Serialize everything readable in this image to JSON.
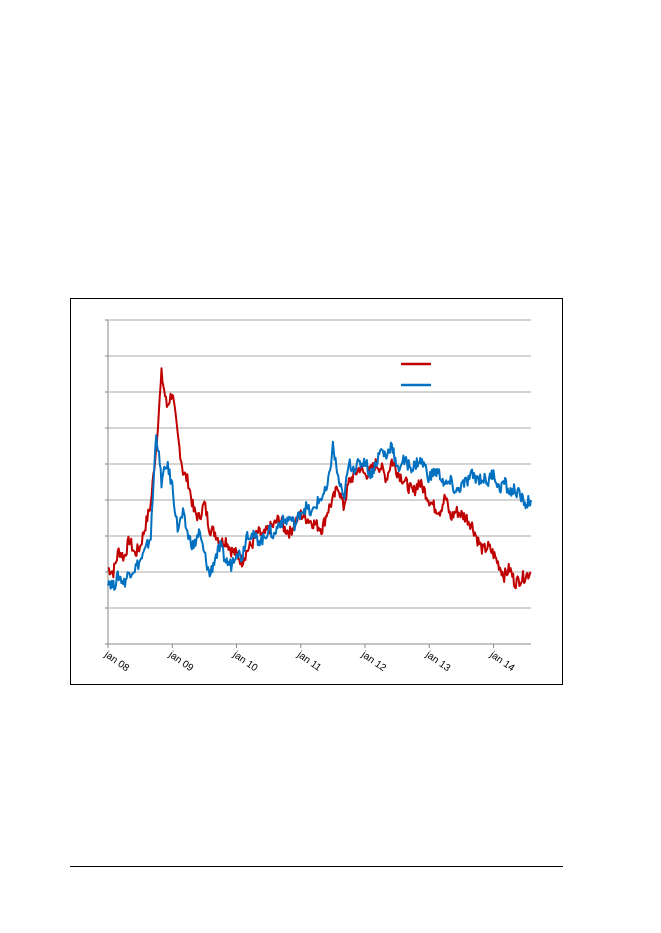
{
  "chart_data": {
    "type": "line",
    "title": "",
    "xlabel": "",
    "ylabel": "",
    "x_tick_labels": [
      "jan 08",
      "jan 09",
      "jan 10",
      "jan 11",
      "jan 12",
      "jan 13",
      "jan 14"
    ],
    "x_range": [
      "2008-01",
      "2014-08"
    ],
    "y_gridlines": 9,
    "grid": true,
    "legend_position": "top-right",
    "y_tick_labels_visible": false,
    "series": [
      {
        "color": "#C00000",
        "x": [
          "2008-01",
          "2008-02",
          "2008-03",
          "2008-04",
          "2008-05",
          "2008-06",
          "2008-07",
          "2008-08",
          "2008-09",
          "2008-10",
          "2008-11",
          "2008-12",
          "2009-01",
          "2009-02",
          "2009-03",
          "2009-04",
          "2009-05",
          "2009-06",
          "2009-07",
          "2009-08",
          "2009-09",
          "2009-10",
          "2009-11",
          "2009-12",
          "2010-01",
          "2010-02",
          "2010-03",
          "2010-04",
          "2010-05",
          "2010-06",
          "2010-07",
          "2010-08",
          "2010-09",
          "2010-10",
          "2010-11",
          "2010-12",
          "2011-01",
          "2011-02",
          "2011-03",
          "2011-04",
          "2011-05",
          "2011-06",
          "2011-07",
          "2011-08",
          "2011-09",
          "2011-10",
          "2011-11",
          "2011-12",
          "2012-01",
          "2012-02",
          "2012-03",
          "2012-04",
          "2012-05",
          "2012-06",
          "2012-07",
          "2012-08",
          "2012-09",
          "2012-10",
          "2012-11",
          "2012-12",
          "2013-01",
          "2013-02",
          "2013-03",
          "2013-04",
          "2013-05",
          "2013-06",
          "2013-07",
          "2013-08",
          "2013-09",
          "2013-10",
          "2013-11",
          "2013-12",
          "2014-01",
          "2014-02",
          "2014-03",
          "2014-04",
          "2014-05",
          "2014-06",
          "2014-07",
          "2014-08"
        ],
        "values": [
          2.1,
          2.0,
          2.6,
          2.4,
          2.9,
          2.5,
          2.7,
          3.3,
          3.9,
          5.5,
          7.5,
          6.6,
          7.0,
          5.8,
          4.8,
          4.5,
          3.7,
          3.5,
          3.9,
          3.2,
          3.1,
          2.8,
          2.9,
          2.6,
          2.5,
          2.3,
          2.6,
          2.8,
          3.1,
          3.0,
          3.2,
          3.3,
          3.5,
          3.2,
          3.1,
          3.4,
          3.6,
          3.5,
          3.4,
          3.3,
          3.2,
          3.7,
          4.0,
          4.4,
          3.8,
          4.5,
          4.7,
          4.9,
          4.7,
          4.8,
          5.0,
          4.9,
          4.6,
          5.1,
          4.8,
          4.6,
          4.4,
          4.2,
          4.5,
          4.3,
          4.0,
          3.8,
          3.7,
          4.1,
          3.5,
          3.7,
          3.6,
          3.5,
          3.3,
          2.9,
          2.6,
          2.7,
          2.5,
          2.2,
          1.9,
          2.1,
          1.7,
          1.8,
          1.9,
          2.0
        ]
      },
      {
        "color": "#0070C0",
        "x": [
          "2008-01",
          "2008-02",
          "2008-03",
          "2008-04",
          "2008-05",
          "2008-06",
          "2008-07",
          "2008-08",
          "2008-09",
          "2008-10",
          "2008-11",
          "2008-12",
          "2009-01",
          "2009-02",
          "2009-03",
          "2009-04",
          "2009-05",
          "2009-06",
          "2009-07",
          "2009-08",
          "2009-09",
          "2009-10",
          "2009-11",
          "2009-12",
          "2010-01",
          "2010-02",
          "2010-03",
          "2010-04",
          "2010-05",
          "2010-06",
          "2010-07",
          "2010-08",
          "2010-09",
          "2010-10",
          "2010-11",
          "2010-12",
          "2011-01",
          "2011-02",
          "2011-03",
          "2011-04",
          "2011-05",
          "2011-06",
          "2011-07",
          "2011-08",
          "2011-09",
          "2011-10",
          "2011-11",
          "2011-12",
          "2012-01",
          "2012-02",
          "2012-03",
          "2012-04",
          "2012-05",
          "2012-06",
          "2012-07",
          "2012-08",
          "2012-09",
          "2012-10",
          "2012-11",
          "2012-12",
          "2013-01",
          "2013-02",
          "2013-03",
          "2013-04",
          "2013-05",
          "2013-06",
          "2013-07",
          "2013-08",
          "2013-09",
          "2013-10",
          "2013-11",
          "2013-12",
          "2014-01",
          "2014-02",
          "2014-03",
          "2014-04",
          "2014-05",
          "2014-06",
          "2014-07",
          "2014-08"
        ],
        "values": [
          1.8,
          1.6,
          1.9,
          1.7,
          2.0,
          2.1,
          2.3,
          2.6,
          3.0,
          5.9,
          4.5,
          5.0,
          4.4,
          3.2,
          3.6,
          3.0,
          2.7,
          3.1,
          2.5,
          1.9,
          2.4,
          2.7,
          2.3,
          2.2,
          2.6,
          2.4,
          3.1,
          3.0,
          2.9,
          2.9,
          3.2,
          3.0,
          3.4,
          3.4,
          3.5,
          3.3,
          3.7,
          3.8,
          3.6,
          3.9,
          4.1,
          4.3,
          5.5,
          4.6,
          4.0,
          5.0,
          4.9,
          5.0,
          5.1,
          4.7,
          5.0,
          5.4,
          5.2,
          5.6,
          4.8,
          5.1,
          5.0,
          4.9,
          5.1,
          5.0,
          4.6,
          4.8,
          4.7,
          4.4,
          4.5,
          4.2,
          4.4,
          4.5,
          4.7,
          4.6,
          4.6,
          4.5,
          4.8,
          4.3,
          4.5,
          4.2,
          4.3,
          4.1,
          3.9,
          4.0
        ]
      }
    ]
  }
}
